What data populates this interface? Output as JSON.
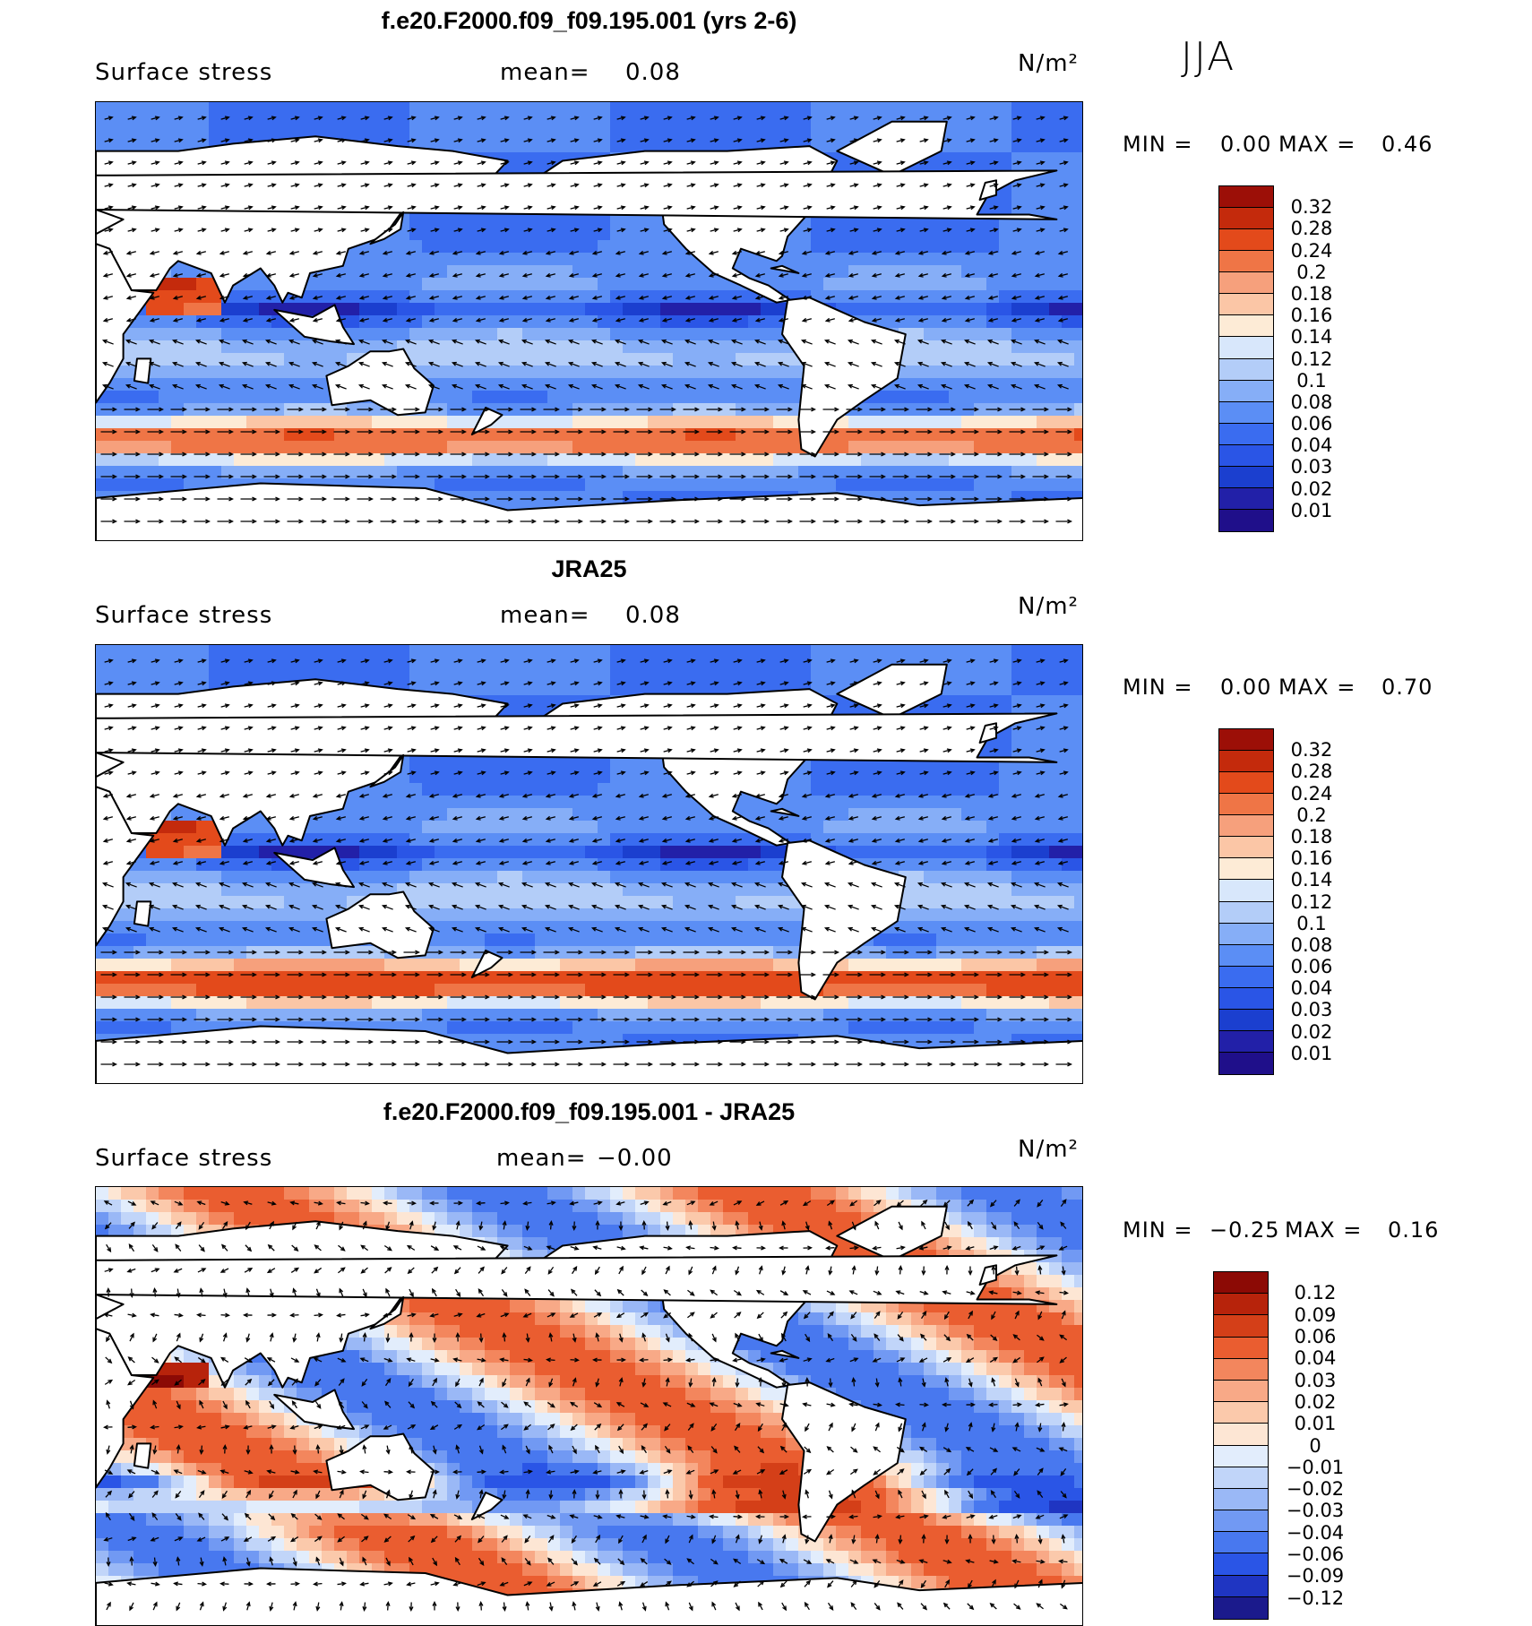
{
  "season": "JJA",
  "panels": [
    {
      "title": "f.e20.F2000.f09_f09.195.001 (yrs 2-6)",
      "variable": "Surface stress",
      "mean_label": "mean=",
      "mean_value": "0.08",
      "units": "N/m²",
      "min_label": "MIN =",
      "min_value": "0.00",
      "max_label": "MAX =",
      "max_value": "0.46",
      "colorbar_labels": [
        "0.32",
        "0.28",
        "0.24",
        "0.2",
        "0.18",
        "0.16",
        "0.14",
        "0.12",
        "0.1",
        "0.08",
        "0.06",
        "0.04",
        "0.03",
        "0.02",
        "0.01"
      ]
    },
    {
      "title": "JRA25",
      "variable": "Surface stress",
      "mean_label": "mean=",
      "mean_value": "0.08",
      "units": "N/m²",
      "min_label": "MIN =",
      "min_value": "0.00",
      "max_label": "MAX =",
      "max_value": "0.70",
      "colorbar_labels": [
        "0.32",
        "0.28",
        "0.24",
        "0.2",
        "0.18",
        "0.16",
        "0.14",
        "0.12",
        "0.1",
        "0.08",
        "0.06",
        "0.04",
        "0.03",
        "0.02",
        "0.01"
      ]
    },
    {
      "title": "f.e20.F2000.f09_f09.195.001 - JRA25",
      "variable": "Surface stress",
      "mean_label": "mean=",
      "mean_value": "−0.00",
      "units": "N/m²",
      "min_label": "MIN =",
      "min_value": "−0.25",
      "max_label": "MAX =",
      "max_value": "0.16",
      "colorbar_labels": [
        "0.12",
        "0.09",
        "0.06",
        "0.04",
        "0.03",
        "0.02",
        "0.01",
        "0",
        "−0.01",
        "−0.02",
        "−0.03",
        "−0.04",
        "−0.06",
        "−0.09",
        "−0.12"
      ]
    }
  ],
  "colors": {
    "abs_scale": [
      "#1f0f8a",
      "#2220a8",
      "#1b3fcf",
      "#2a55e6",
      "#3a6cf0",
      "#5b8ef5",
      "#86aef7",
      "#b3cdf8",
      "#d8e7fb",
      "#fdebd6",
      "#fbc6a6",
      "#f6a07c",
      "#ef7546",
      "#e34a1b",
      "#c42a0c",
      "#9c0f07"
    ],
    "diff_scale": [
      "#1b1a8c",
      "#1f35c2",
      "#2a55e6",
      "#4878ef",
      "#7199f3",
      "#9ab8f6",
      "#c1d5f9",
      "#e2edfc",
      "#fde6d4",
      "#fbc9ab",
      "#f8a987",
      "#f3865d",
      "#ea5d30",
      "#d43f18",
      "#b7230b",
      "#8c0a05"
    ],
    "land": "#ffffff",
    "coastline": "#000000",
    "vector": "#000000"
  },
  "icons": {
    "vectors": "arrow-icon"
  }
}
